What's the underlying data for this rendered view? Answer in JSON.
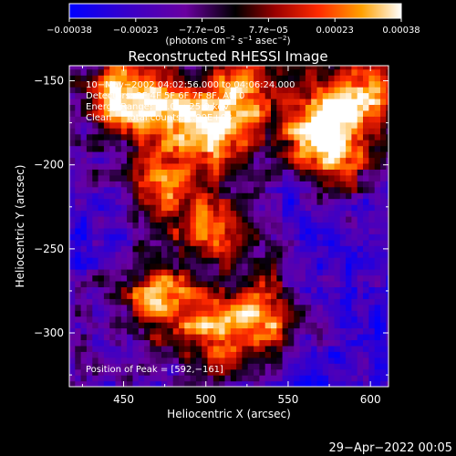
{
  "chart_data": {
    "type": "heatmap",
    "title": "Reconstructed RHESSI Image",
    "xlabel": "Heliocentric X (arcsec)",
    "ylabel": "Heliocentric Y (arcsec)",
    "xlim": [
      417,
      611
    ],
    "ylim": [
      -332,
      -141
    ],
    "xticks": [
      450,
      500,
      550,
      600
    ],
    "yticks": [
      -150,
      -200,
      -250,
      -300
    ],
    "xtick_labels": [
      "450",
      "500",
      "550",
      "600"
    ],
    "ytick_labels": [
      "−150",
      "−200",
      "−250",
      "−300"
    ],
    "colorbar": {
      "range": [
        -0.00038,
        0.00038
      ],
      "tick_labels": [
        "−0.00038",
        "−0.00023",
        "−7.7e−05",
        "7.7e−05",
        "0.00023",
        "0.00038"
      ],
      "unit_main": "(photons cm",
      "unit_exp1": "−2",
      "unit_mid": " s",
      "unit_exp2": "−1",
      "unit_mid2": " asec",
      "unit_exp3": "−2",
      "unit_end": ")"
    },
    "info_lines": [
      "10−May−2002 04:02:56.000 to 04:06:24.000",
      "Detectors: 3F 4F 5F 6F 7F 8F, Att 0",
      "Energy Range: 12.0 − 25.0 keV",
      "Clean     Total counts: 1.90E+03"
    ],
    "peak_label": "Position of Peak = [592,−161]",
    "peak": [
      592,
      -161
    ],
    "bright_regions": [
      {
        "x": 445,
        "y": -160,
        "level": 0.9
      },
      {
        "x": 470,
        "y": -165,
        "level": 0.85
      },
      {
        "x": 500,
        "y": -185,
        "level": 0.95
      },
      {
        "x": 520,
        "y": -160,
        "level": 0.9
      },
      {
        "x": 565,
        "y": -178,
        "level": 1.0
      },
      {
        "x": 592,
        "y": -161,
        "level": 1.0
      },
      {
        "x": 470,
        "y": -215,
        "level": 0.8
      },
      {
        "x": 505,
        "y": -240,
        "level": 0.85
      },
      {
        "x": 470,
        "y": -280,
        "level": 0.9
      },
      {
        "x": 505,
        "y": -300,
        "level": 0.95
      },
      {
        "x": 535,
        "y": -290,
        "level": 0.8
      },
      {
        "x": 580,
        "y": -200,
        "level": 0.75
      }
    ]
  },
  "footer": {
    "timestamp": "29−Apr−2022 00:05"
  }
}
